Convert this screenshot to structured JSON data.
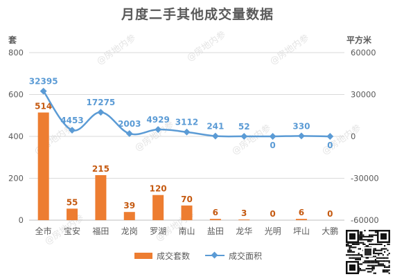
{
  "title": "月度二手其他成交量数据",
  "left_unit": "套",
  "right_unit": "平方米",
  "watermark_text": "@房地内参",
  "legend": {
    "bar_label": "成交套数",
    "line_label": "成交面积"
  },
  "colors": {
    "bar": "#ed7d31",
    "line": "#5b9bd5",
    "bar_label": "#c55a11",
    "line_label": "#5b9bd5",
    "grid": "#d9d9d9",
    "axis_text": "#595959"
  },
  "chart_data": {
    "type": "bar+line",
    "title": "月度二手其他成交量数据",
    "categories": [
      "全市",
      "宝安",
      "福田",
      "龙岗",
      "罗湖",
      "南山",
      "盐田",
      "龙华",
      "光明",
      "坪山",
      "大鹏"
    ],
    "series": [
      {
        "name": "成交套数",
        "type": "bar",
        "axis": "left",
        "values": [
          514,
          55,
          215,
          39,
          120,
          70,
          6,
          3,
          0,
          6,
          0
        ]
      },
      {
        "name": "成交面积",
        "type": "line",
        "axis": "right",
        "smooth": true,
        "values": [
          32395,
          4453,
          17275,
          2003,
          4929,
          3112,
          241,
          52,
          0,
          330,
          0
        ]
      }
    ],
    "left_axis": {
      "label": "套",
      "range": [
        0,
        800
      ],
      "ticks": [
        0,
        200,
        400,
        600,
        800
      ]
    },
    "right_axis": {
      "label": "平方米",
      "range": [
        -60000,
        60000
      ],
      "ticks": [
        -60000,
        -30000,
        0,
        30000,
        60000
      ]
    },
    "grid": true,
    "legend_position": "bottom"
  }
}
